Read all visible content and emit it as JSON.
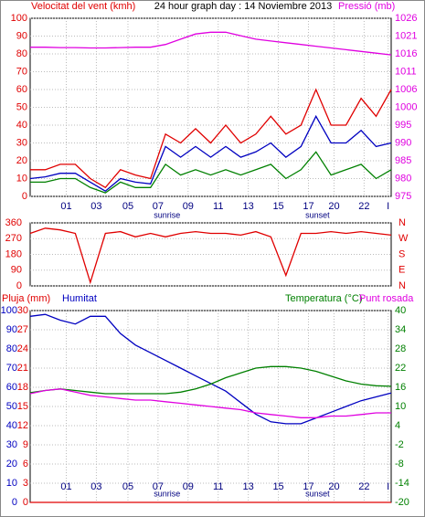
{
  "chart_data": [
    {
      "type": "line",
      "title": "24 hour graph day : 14 Noviembre 2013",
      "x": [
        0,
        1,
        2,
        3,
        4,
        5,
        6,
        7,
        8,
        9,
        10,
        11,
        12,
        13,
        14,
        15,
        16,
        17,
        18,
        19,
        20,
        21,
        22,
        23,
        24
      ],
      "xlim": [
        0,
        24
      ],
      "xticks": [
        {
          "value": 2.4,
          "label": "01"
        },
        {
          "value": 4.4,
          "label": "03"
        },
        {
          "value": 6.5,
          "label": "05"
        },
        {
          "value": 8.5,
          "label": "07"
        },
        {
          "value": 10.5,
          "label": "09"
        },
        {
          "value": 12.5,
          "label": "11"
        },
        {
          "value": 14.5,
          "label": "13"
        },
        {
          "value": 16.5,
          "label": "15"
        },
        {
          "value": 18.5,
          "label": "17"
        },
        {
          "value": 20.2,
          "label": "20"
        },
        {
          "value": 22.2,
          "label": "22"
        },
        {
          "value": 23.8,
          "label": "I"
        }
      ],
      "ylim": [
        0,
        100
      ],
      "yticks": [
        0,
        10,
        20,
        30,
        40,
        50,
        60,
        70,
        80,
        90,
        100
      ],
      "y2lim": [
        975,
        1026
      ],
      "y2ticks": [
        975,
        {
          "value": 980.1,
          "label": "980"
        },
        {
          "value": 985.2,
          "label": "985"
        },
        {
          "value": 990.3,
          "label": "990"
        },
        {
          "value": 995.4,
          "label": "995"
        },
        {
          "value": 1000.5,
          "label": "1000"
        },
        {
          "value": 1005.6,
          "label": "1006"
        },
        {
          "value": 1010.7,
          "label": "1011"
        },
        {
          "value": 1015.8,
          "label": "1016"
        },
        {
          "value": 1020.9,
          "label": "1021"
        },
        1026
      ],
      "grid": true,
      "annotations": [
        {
          "text": "sunrise",
          "x": 9.1
        },
        {
          "text": "sunset",
          "x": 19.1
        }
      ],
      "series": [
        {
          "name": "Velocitat del vent (kmh)",
          "color": "#e00000",
          "values": [
            15,
            15,
            18,
            18,
            10,
            5,
            15,
            12,
            10,
            35,
            30,
            38,
            30,
            40,
            30,
            35,
            45,
            35,
            40,
            60,
            40,
            40,
            55,
            45,
            60
          ]
        },
        {
          "color": "#0000c0",
          "values": [
            10,
            11,
            13,
            13,
            8,
            3,
            10,
            8,
            7,
            28,
            22,
            28,
            22,
            28,
            22,
            25,
            30,
            22,
            28,
            45,
            30,
            30,
            37,
            28,
            30
          ]
        },
        {
          "color": "#008000",
          "values": [
            8,
            8,
            10,
            10,
            5,
            2,
            8,
            5,
            5,
            18,
            12,
            15,
            12,
            15,
            12,
            15,
            18,
            10,
            15,
            25,
            12,
            15,
            18,
            10,
            15
          ]
        },
        {
          "name": "Pressió (mb)",
          "color": "#e000e0",
          "axis": "y2",
          "values": [
            1017.7,
            1017.7,
            1017.6,
            1017.6,
            1017.5,
            1017.5,
            1017.6,
            1017.7,
            1017.7,
            1018.5,
            1020,
            1021.5,
            1022,
            1022,
            1021,
            1020,
            1019.5,
            1019,
            1018.5,
            1018,
            1017.5,
            1017,
            1016.5,
            1016,
            1015.5
          ]
        }
      ]
    },
    {
      "type": "line",
      "x": [
        0,
        1,
        2,
        3,
        4,
        5,
        6,
        7,
        8,
        9,
        10,
        11,
        12,
        13,
        14,
        15,
        16,
        17,
        18,
        19,
        20,
        21,
        22,
        23,
        24
      ],
      "xlim": [
        0,
        24
      ],
      "ylim": [
        0,
        360
      ],
      "yticks": [
        0,
        90,
        180,
        270,
        360
      ],
      "y2lim": [
        0,
        360
      ],
      "y2ticks": [
        {
          "value": 0,
          "label": "N"
        },
        {
          "value": 90,
          "label": "E"
        },
        {
          "value": 180,
          "label": "S"
        },
        {
          "value": 270,
          "label": "W"
        },
        {
          "value": 360,
          "label": "N"
        }
      ],
      "grid": true,
      "series": [
        {
          "color": "#e00000",
          "values": [
            300,
            330,
            320,
            300,
            20,
            300,
            310,
            280,
            300,
            280,
            300,
            310,
            300,
            300,
            290,
            310,
            280,
            60,
            300,
            300,
            310,
            300,
            310,
            300,
            290
          ]
        }
      ]
    },
    {
      "type": "line",
      "x": [
        0,
        1,
        2,
        3,
        4,
        5,
        6,
        7,
        8,
        9,
        10,
        11,
        12,
        13,
        14,
        15,
        16,
        17,
        18,
        19,
        20,
        21,
        22,
        23,
        24
      ],
      "xlim": [
        0,
        24
      ],
      "xticks": [
        {
          "value": 2.4,
          "label": "01"
        },
        {
          "value": 4.4,
          "label": "03"
        },
        {
          "value": 6.5,
          "label": "05"
        },
        {
          "value": 8.5,
          "label": "07"
        },
        {
          "value": 10.5,
          "label": "09"
        },
        {
          "value": 12.5,
          "label": "11"
        },
        {
          "value": 14.5,
          "label": "13"
        },
        {
          "value": 16.5,
          "label": "15"
        },
        {
          "value": 18.5,
          "label": "17"
        },
        {
          "value": 20.2,
          "label": "20"
        },
        {
          "value": 22.2,
          "label": "22"
        },
        {
          "value": 23.8,
          "label": "I"
        }
      ],
      "ylim": [
        0,
        100
      ],
      "yticks": [
        0,
        10,
        20,
        30,
        40,
        50,
        60,
        70,
        80,
        90,
        100
      ],
      "y3lim": [
        0,
        30
      ],
      "y3ticks": [
        0,
        3,
        6,
        9,
        12,
        15,
        18,
        21,
        24,
        27,
        30
      ],
      "y2lim": [
        -20,
        40
      ],
      "y2ticks": [
        -20,
        -14,
        -8,
        -2,
        4,
        10,
        16,
        22,
        28,
        34,
        40
      ],
      "grid": true,
      "annotations": [
        {
          "text": "sunrise",
          "x": 9.1
        },
        {
          "text": "sunset",
          "x": 19.1
        }
      ],
      "series": [
        {
          "name": "Pluja (mm)",
          "color": "#e00000",
          "axis": "y3",
          "values": [
            0,
            0,
            0,
            0,
            0,
            0,
            0,
            0,
            0,
            0,
            0,
            0,
            0,
            0,
            0,
            0,
            0,
            0,
            0,
            0,
            0,
            0,
            0,
            0,
            0
          ]
        },
        {
          "name": "Humitat",
          "color": "#0000c0",
          "values": [
            97,
            98,
            95,
            93,
            97,
            97,
            88,
            82,
            78,
            74,
            70,
            66,
            62,
            58,
            52,
            46,
            42,
            41,
            41,
            44,
            47,
            50,
            53,
            55,
            57
          ]
        },
        {
          "name": "Temperatura (°C)",
          "color": "#008000",
          "axis": "y2",
          "values": [
            14.3,
            15,
            15.5,
            15,
            14.5,
            14,
            14,
            14,
            14,
            14,
            14.5,
            15.5,
            17,
            19,
            20.5,
            22,
            22.5,
            22.5,
            22,
            21,
            19.5,
            18,
            17,
            16.5,
            16.3
          ]
        },
        {
          "name": "Punt rosada",
          "color": "#e000e0",
          "axis": "y2",
          "values": [
            14,
            15,
            15.5,
            14.5,
            13.5,
            13,
            12.5,
            12,
            12,
            11.5,
            11,
            10.5,
            10,
            9.5,
            9,
            8,
            7.5,
            7,
            6.5,
            6.5,
            7,
            7,
            7.5,
            8,
            8
          ]
        }
      ]
    }
  ]
}
